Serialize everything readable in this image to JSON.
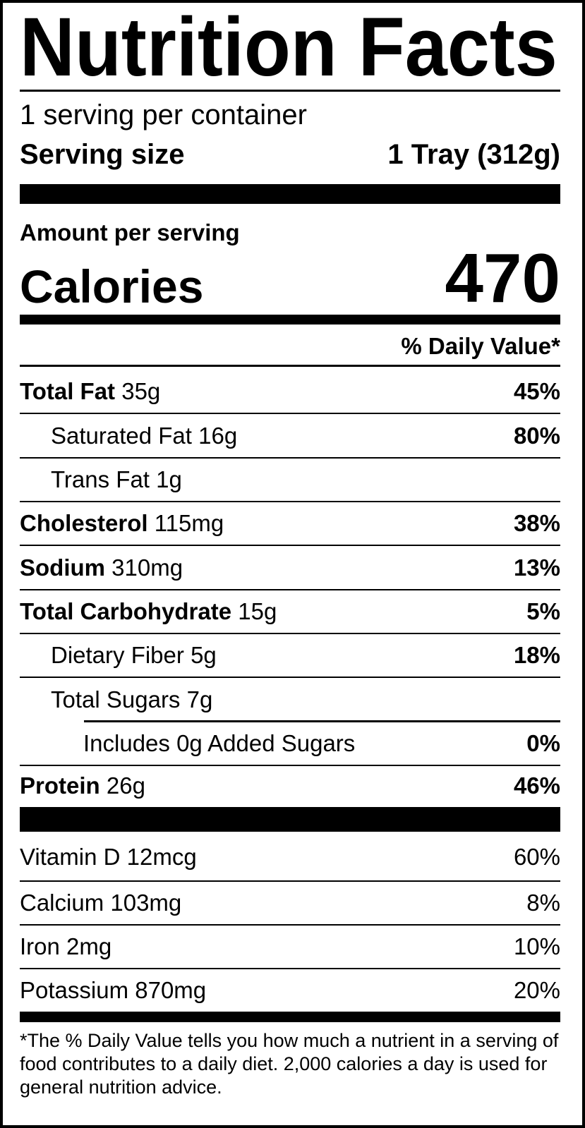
{
  "title": "Nutrition Facts",
  "servings_per_container": "1 serving per container",
  "serving_size": {
    "label": "Serving size",
    "value": "1 Tray (312g)"
  },
  "amount_per_serving": "Amount per serving",
  "calories": {
    "label": "Calories",
    "value": "470"
  },
  "daily_value_header": "% Daily Value*",
  "nutrients": [
    {
      "name": "Total Fat",
      "amount": "35g",
      "dv": "45%"
    },
    {
      "name": "Saturated Fat",
      "amount": "16g",
      "dv": "80%"
    },
    {
      "name": "Trans Fat",
      "amount": "1g",
      "dv": ""
    },
    {
      "name": "Cholesterol",
      "amount": "115mg",
      "dv": "38%"
    },
    {
      "name": "Sodium",
      "amount": "310mg",
      "dv": "13%"
    },
    {
      "name": "Total Carbohydrate",
      "amount": "15g",
      "dv": "5%"
    },
    {
      "name": "Dietary Fiber",
      "amount": "5g",
      "dv": "18%"
    },
    {
      "name": "Total Sugars",
      "amount": "7g",
      "dv": ""
    },
    {
      "name": "Includes 0g Added Sugars",
      "amount": "",
      "dv": "0%"
    },
    {
      "name": "Protein",
      "amount": "26g",
      "dv": "46%"
    }
  ],
  "vitamins": [
    {
      "name": "Vitamin D",
      "amount": "12mcg",
      "dv": "60%"
    },
    {
      "name": "Calcium",
      "amount": "103mg",
      "dv": "8%"
    },
    {
      "name": "Iron",
      "amount": "2mg",
      "dv": "10%"
    },
    {
      "name": "Potassium",
      "amount": "870mg",
      "dv": "20%"
    }
  ],
  "footnote": "*The % Daily Value tells you how much a nutrient in a serving of food contributes to a daily diet. 2,000 calories a day is used for general nutrition advice."
}
